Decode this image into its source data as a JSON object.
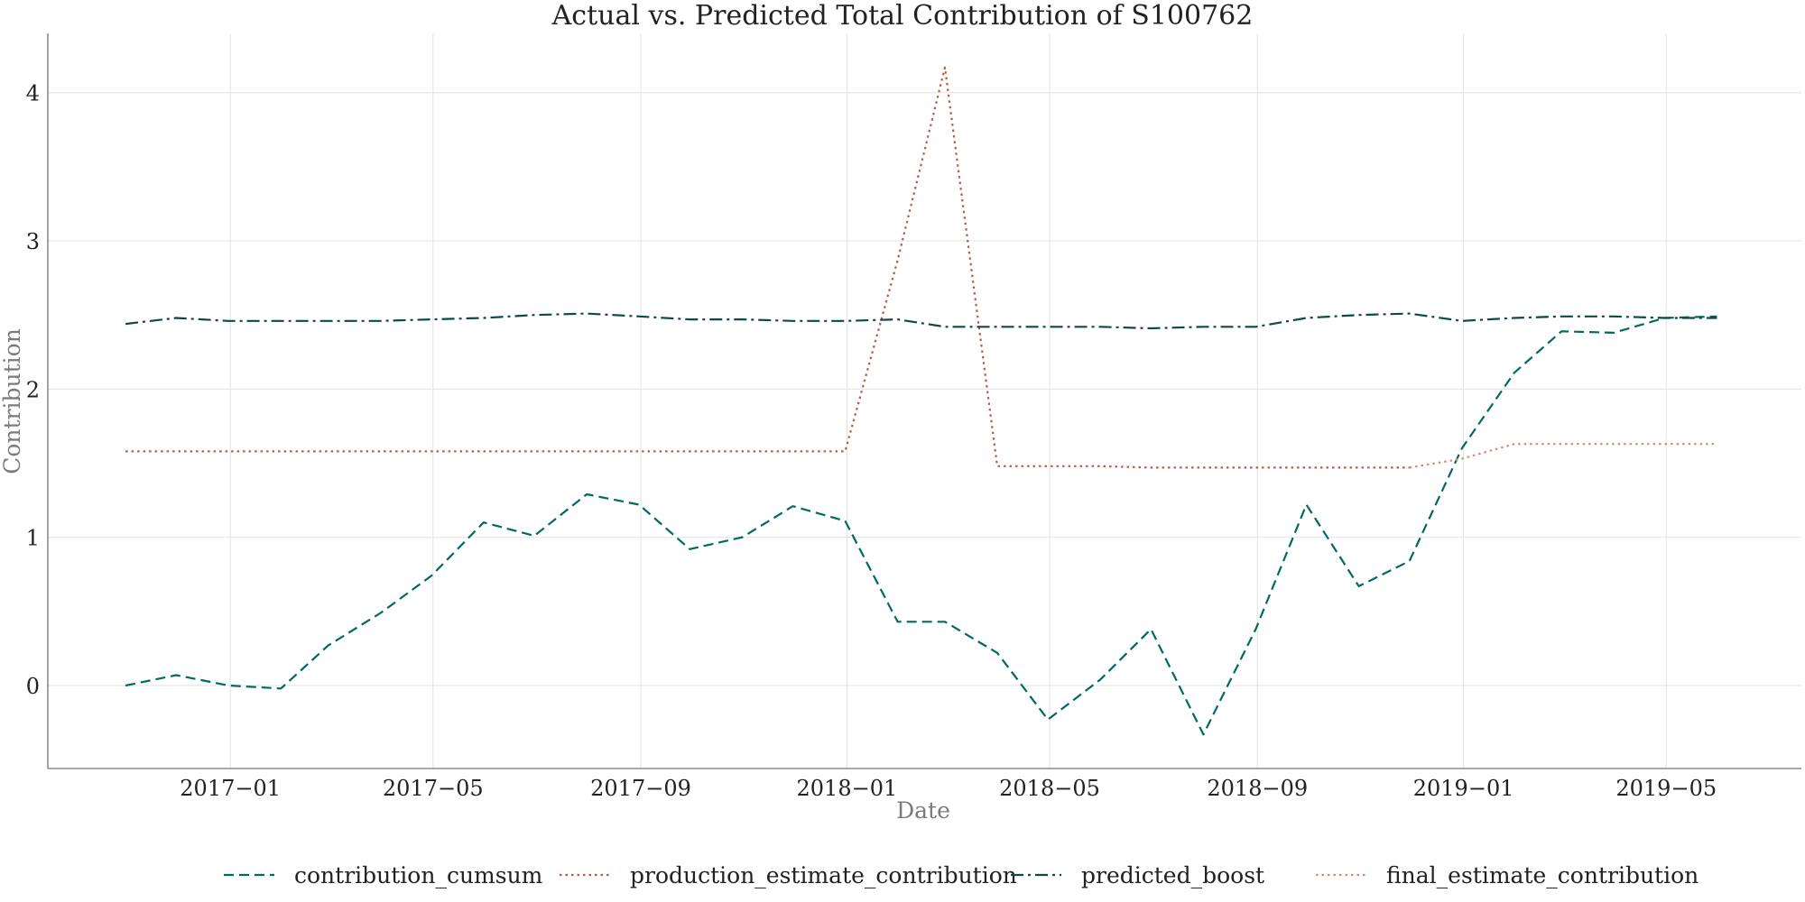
{
  "chart_data": {
    "type": "line",
    "title": "Actual vs. Predicted Total Contribution of S100762",
    "xlabel": "Date",
    "ylabel": "Contribution",
    "xlim": [
      "2016-09-15",
      "2019-07-20"
    ],
    "ylim": [
      -0.56,
      4.4
    ],
    "xticks": [
      {
        "date": "2017-01-01",
        "label": "2017−01"
      },
      {
        "date": "2017-05-01",
        "label": "2017−05"
      },
      {
        "date": "2017-09-01",
        "label": "2017−09"
      },
      {
        "date": "2018-01-01",
        "label": "2018−01"
      },
      {
        "date": "2018-05-01",
        "label": "2018−05"
      },
      {
        "date": "2018-09-01",
        "label": "2018−09"
      },
      {
        "date": "2019-01-01",
        "label": "2019−01"
      },
      {
        "date": "2019-05-01",
        "label": "2019−05"
      }
    ],
    "yticks": [
      0,
      1,
      2,
      3,
      4
    ],
    "grid": true,
    "legend_position": "bottom-center",
    "x": [
      "2016-10-31",
      "2016-11-30",
      "2016-12-31",
      "2017-01-31",
      "2017-02-28",
      "2017-03-31",
      "2017-04-30",
      "2017-05-31",
      "2017-06-30",
      "2017-07-31",
      "2017-08-31",
      "2017-09-30",
      "2017-10-31",
      "2017-11-30",
      "2017-12-31",
      "2018-01-31",
      "2018-02-28",
      "2018-03-31",
      "2018-04-30",
      "2018-05-31",
      "2018-06-30",
      "2018-07-31",
      "2018-08-31",
      "2018-09-30",
      "2018-10-31",
      "2018-11-30",
      "2018-12-31",
      "2019-01-31",
      "2019-02-28",
      "2019-03-31",
      "2019-04-30",
      "2019-05-31"
    ],
    "series": [
      {
        "name": "contribution_cumsum",
        "color": "#006a5f",
        "dash": "dashed",
        "values": [
          0.0,
          0.07,
          0.0,
          -0.02,
          0.27,
          0.49,
          0.74,
          1.1,
          1.01,
          1.29,
          1.22,
          0.92,
          1.0,
          1.21,
          1.11,
          0.43,
          0.43,
          0.22,
          -0.23,
          0.04,
          0.38,
          -0.33,
          0.38,
          1.22,
          0.67,
          0.84,
          1.6,
          2.11,
          2.39,
          2.38,
          2.48,
          2.49
        ]
      },
      {
        "name": "production_estimate_contribution",
        "color": "#b85c45",
        "dash": "dotted",
        "values": [
          1.58,
          1.58,
          1.58,
          1.58,
          1.58,
          1.58,
          1.58,
          1.58,
          1.58,
          1.58,
          1.58,
          1.58,
          1.58,
          1.58,
          1.58,
          2.87,
          4.17,
          1.48,
          1.48,
          1.48,
          1.47,
          1.47,
          1.47,
          1.47,
          1.47,
          1.47,
          null,
          null,
          null,
          null,
          null,
          null
        ]
      },
      {
        "name": "predicted_boost",
        "color": "#0a4a48",
        "dash": "dashdot",
        "values": [
          2.44,
          2.48,
          2.46,
          2.46,
          2.46,
          2.46,
          2.47,
          2.48,
          2.5,
          2.51,
          2.49,
          2.47,
          2.47,
          2.46,
          2.46,
          2.47,
          2.42,
          2.42,
          2.42,
          2.42,
          2.41,
          2.42,
          2.42,
          2.48,
          2.5,
          2.51,
          2.46,
          2.48,
          2.49,
          2.49,
          2.48,
          2.48
        ]
      },
      {
        "name": "final_estimate_contribution",
        "color": "#d98a6c",
        "dash": "dotted",
        "values": [
          null,
          null,
          null,
          null,
          null,
          null,
          null,
          null,
          null,
          null,
          null,
          null,
          null,
          null,
          null,
          null,
          null,
          null,
          null,
          null,
          null,
          null,
          null,
          null,
          null,
          1.47,
          1.53,
          1.63,
          1.63,
          1.63,
          1.63,
          1.63
        ]
      }
    ]
  }
}
